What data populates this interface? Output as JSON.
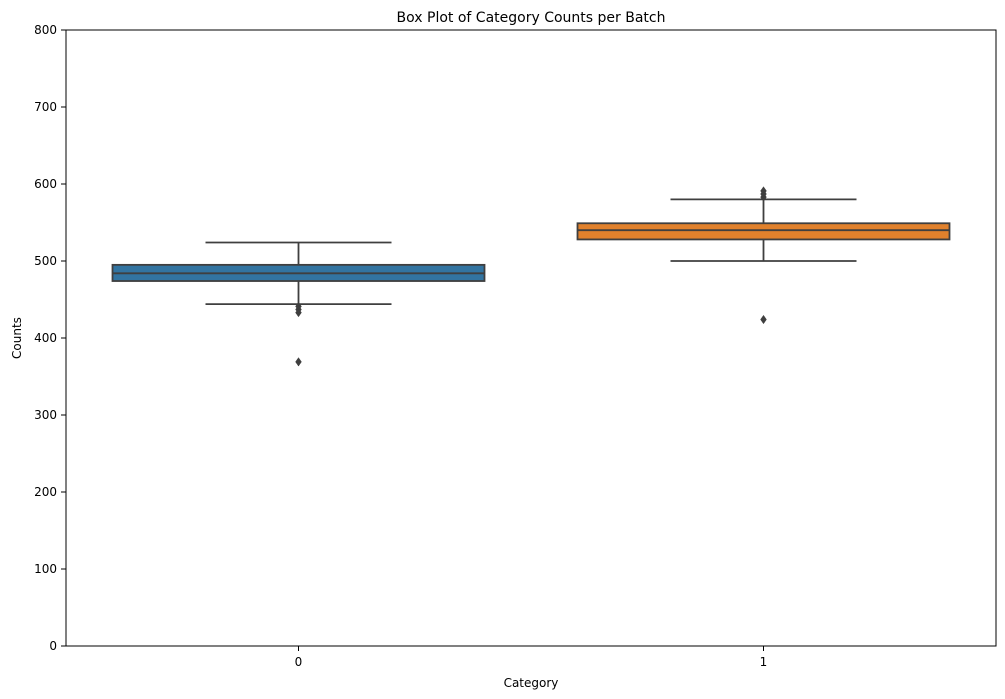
{
  "chart_data": {
    "type": "box",
    "title": "Box Plot of Category Counts per Batch",
    "xlabel": "Category",
    "ylabel": "Counts",
    "ylim": [
      0,
      800
    ],
    "yticks": [
      "0",
      "100",
      "200",
      "300",
      "400",
      "500",
      "600",
      "700",
      "800"
    ],
    "categories": [
      "0",
      "1"
    ],
    "grid": false,
    "boxes": [
      {
        "category": "0",
        "color": "#3274a1",
        "whisker_low": 444,
        "q1": 474,
        "median": 484,
        "q3": 495,
        "whisker_high": 524,
        "outliers": [
          369,
          433,
          437,
          441
        ]
      },
      {
        "category": "1",
        "color": "#e1812c",
        "whisker_low": 500,
        "q1": 528,
        "median": 540,
        "q3": 549,
        "whisker_high": 580,
        "outliers": [
          424,
          583,
          587,
          591
        ]
      }
    ],
    "line_color": "#3f3f3f"
  }
}
